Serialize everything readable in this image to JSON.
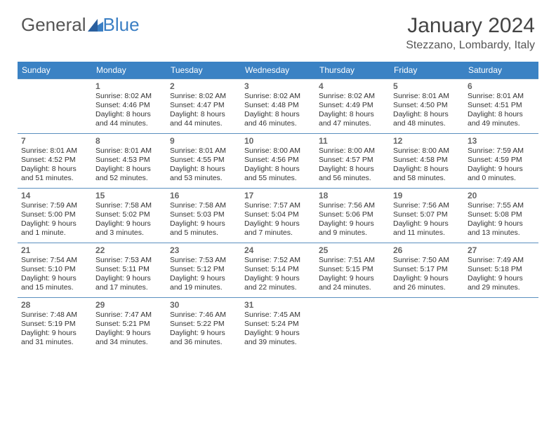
{
  "logo": {
    "text_a": "General",
    "text_b": "Blue",
    "icon_color": "#3b7fc4"
  },
  "title": "January 2024",
  "location": "Stezzano, Lombardy, Italy",
  "colors": {
    "header_bg": "#3b82c4",
    "header_text": "#ffffff",
    "border": "#5a8fbf",
    "text": "#333333",
    "daynum": "#666666"
  },
  "day_headers": [
    "Sunday",
    "Monday",
    "Tuesday",
    "Wednesday",
    "Thursday",
    "Friday",
    "Saturday"
  ],
  "weeks": [
    [
      null,
      {
        "n": "1",
        "sunrise": "8:02 AM",
        "sunset": "4:46 PM",
        "daylight": "8 hours and 44 minutes."
      },
      {
        "n": "2",
        "sunrise": "8:02 AM",
        "sunset": "4:47 PM",
        "daylight": "8 hours and 44 minutes."
      },
      {
        "n": "3",
        "sunrise": "8:02 AM",
        "sunset": "4:48 PM",
        "daylight": "8 hours and 46 minutes."
      },
      {
        "n": "4",
        "sunrise": "8:02 AM",
        "sunset": "4:49 PM",
        "daylight": "8 hours and 47 minutes."
      },
      {
        "n": "5",
        "sunrise": "8:01 AM",
        "sunset": "4:50 PM",
        "daylight": "8 hours and 48 minutes."
      },
      {
        "n": "6",
        "sunrise": "8:01 AM",
        "sunset": "4:51 PM",
        "daylight": "8 hours and 49 minutes."
      }
    ],
    [
      {
        "n": "7",
        "sunrise": "8:01 AM",
        "sunset": "4:52 PM",
        "daylight": "8 hours and 51 minutes."
      },
      {
        "n": "8",
        "sunrise": "8:01 AM",
        "sunset": "4:53 PM",
        "daylight": "8 hours and 52 minutes."
      },
      {
        "n": "9",
        "sunrise": "8:01 AM",
        "sunset": "4:55 PM",
        "daylight": "8 hours and 53 minutes."
      },
      {
        "n": "10",
        "sunrise": "8:00 AM",
        "sunset": "4:56 PM",
        "daylight": "8 hours and 55 minutes."
      },
      {
        "n": "11",
        "sunrise": "8:00 AM",
        "sunset": "4:57 PM",
        "daylight": "8 hours and 56 minutes."
      },
      {
        "n": "12",
        "sunrise": "8:00 AM",
        "sunset": "4:58 PM",
        "daylight": "8 hours and 58 minutes."
      },
      {
        "n": "13",
        "sunrise": "7:59 AM",
        "sunset": "4:59 PM",
        "daylight": "9 hours and 0 minutes."
      }
    ],
    [
      {
        "n": "14",
        "sunrise": "7:59 AM",
        "sunset": "5:00 PM",
        "daylight": "9 hours and 1 minute."
      },
      {
        "n": "15",
        "sunrise": "7:58 AM",
        "sunset": "5:02 PM",
        "daylight": "9 hours and 3 minutes."
      },
      {
        "n": "16",
        "sunrise": "7:58 AM",
        "sunset": "5:03 PM",
        "daylight": "9 hours and 5 minutes."
      },
      {
        "n": "17",
        "sunrise": "7:57 AM",
        "sunset": "5:04 PM",
        "daylight": "9 hours and 7 minutes."
      },
      {
        "n": "18",
        "sunrise": "7:56 AM",
        "sunset": "5:06 PM",
        "daylight": "9 hours and 9 minutes."
      },
      {
        "n": "19",
        "sunrise": "7:56 AM",
        "sunset": "5:07 PM",
        "daylight": "9 hours and 11 minutes."
      },
      {
        "n": "20",
        "sunrise": "7:55 AM",
        "sunset": "5:08 PM",
        "daylight": "9 hours and 13 minutes."
      }
    ],
    [
      {
        "n": "21",
        "sunrise": "7:54 AM",
        "sunset": "5:10 PM",
        "daylight": "9 hours and 15 minutes."
      },
      {
        "n": "22",
        "sunrise": "7:53 AM",
        "sunset": "5:11 PM",
        "daylight": "9 hours and 17 minutes."
      },
      {
        "n": "23",
        "sunrise": "7:53 AM",
        "sunset": "5:12 PM",
        "daylight": "9 hours and 19 minutes."
      },
      {
        "n": "24",
        "sunrise": "7:52 AM",
        "sunset": "5:14 PM",
        "daylight": "9 hours and 22 minutes."
      },
      {
        "n": "25",
        "sunrise": "7:51 AM",
        "sunset": "5:15 PM",
        "daylight": "9 hours and 24 minutes."
      },
      {
        "n": "26",
        "sunrise": "7:50 AM",
        "sunset": "5:17 PM",
        "daylight": "9 hours and 26 minutes."
      },
      {
        "n": "27",
        "sunrise": "7:49 AM",
        "sunset": "5:18 PM",
        "daylight": "9 hours and 29 minutes."
      }
    ],
    [
      {
        "n": "28",
        "sunrise": "7:48 AM",
        "sunset": "5:19 PM",
        "daylight": "9 hours and 31 minutes."
      },
      {
        "n": "29",
        "sunrise": "7:47 AM",
        "sunset": "5:21 PM",
        "daylight": "9 hours and 34 minutes."
      },
      {
        "n": "30",
        "sunrise": "7:46 AM",
        "sunset": "5:22 PM",
        "daylight": "9 hours and 36 minutes."
      },
      {
        "n": "31",
        "sunrise": "7:45 AM",
        "sunset": "5:24 PM",
        "daylight": "9 hours and 39 minutes."
      },
      null,
      null,
      null
    ]
  ],
  "labels": {
    "sunrise": "Sunrise:",
    "sunset": "Sunset:",
    "daylight": "Daylight:"
  }
}
